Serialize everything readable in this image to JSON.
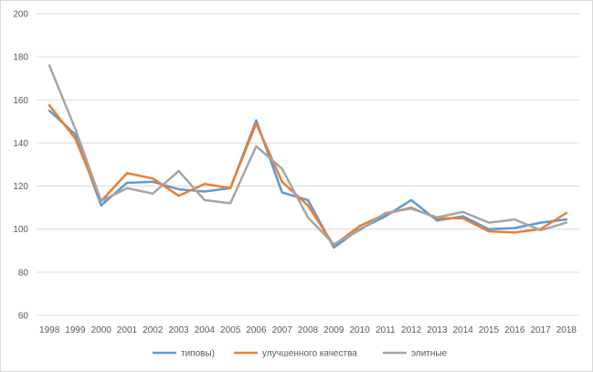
{
  "chart_data": {
    "type": "line",
    "title": "",
    "xlabel": "",
    "ylabel": "",
    "ylim": [
      60,
      200
    ],
    "yticks": [
      60,
      80,
      100,
      120,
      140,
      160,
      180,
      200
    ],
    "grid": "horizontal",
    "legend_position": "bottom",
    "categories": [
      "1998",
      "1999",
      "2000",
      "2001",
      "2002",
      "2003",
      "2004",
      "2005",
      "2006",
      "2007",
      "2008",
      "2009",
      "2010",
      "2011",
      "2012",
      "2013",
      "2014",
      "2015",
      "2016",
      "2017",
      "2018"
    ],
    "series": [
      {
        "name": "типовы)",
        "color": "#5b9bd5",
        "values": [
          155,
          144,
          111,
          121.5,
          122,
          118.5,
          117.5,
          119,
          150.5,
          117,
          113.5,
          91.5,
          100,
          106,
          113.5,
          104,
          106,
          100,
          100.5,
          103,
          104.5
        ]
      },
      {
        "name": "улучшенного качества",
        "color": "#ed7d31",
        "values": [
          157.5,
          142,
          113,
          126,
          123.5,
          115.5,
          121,
          119,
          149,
          122,
          111,
          92.5,
          101.5,
          107,
          110,
          105,
          105,
          99,
          98.5,
          100,
          107.5
        ]
      },
      {
        "name": "элитные",
        "color": "#a5a5a5",
        "values": [
          176,
          146.5,
          113,
          119,
          116.5,
          127,
          113.5,
          112,
          138.5,
          128,
          105.5,
          93,
          99.5,
          107.5,
          109.5,
          105.5,
          108,
          103,
          104.5,
          99.5,
          103
        ]
      }
    ]
  }
}
